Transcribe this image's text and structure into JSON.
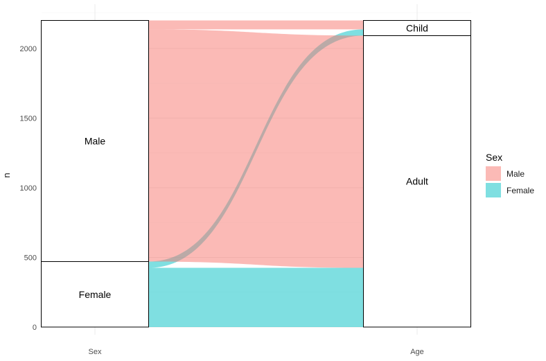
{
  "chart_data": {
    "type": "alluvial",
    "axes": [
      "Sex",
      "Age"
    ],
    "ylabel": "n",
    "ylim": [
      0,
      2201
    ],
    "yticks": [
      0,
      500,
      1000,
      1500,
      2000
    ],
    "grid": true,
    "legend_title": "Sex",
    "legend_position": "right",
    "legend": [
      {
        "name": "Male",
        "color": "#F8766D"
      },
      {
        "name": "Female",
        "color": "#00BFC4"
      }
    ],
    "strata": {
      "Sex": [
        {
          "name": "Female",
          "value": 470
        },
        {
          "name": "Male",
          "value": 1731
        }
      ],
      "Age": [
        {
          "name": "Adult",
          "value": 2092
        },
        {
          "name": "Child",
          "value": 109
        }
      ]
    },
    "flows": [
      {
        "sex": "Female",
        "age": "Adult",
        "value": 425
      },
      {
        "sex": "Female",
        "age": "Child",
        "value": 45
      },
      {
        "sex": "Male",
        "age": "Adult",
        "value": 1667
      },
      {
        "sex": "Male",
        "age": "Child",
        "value": 64
      }
    ]
  }
}
